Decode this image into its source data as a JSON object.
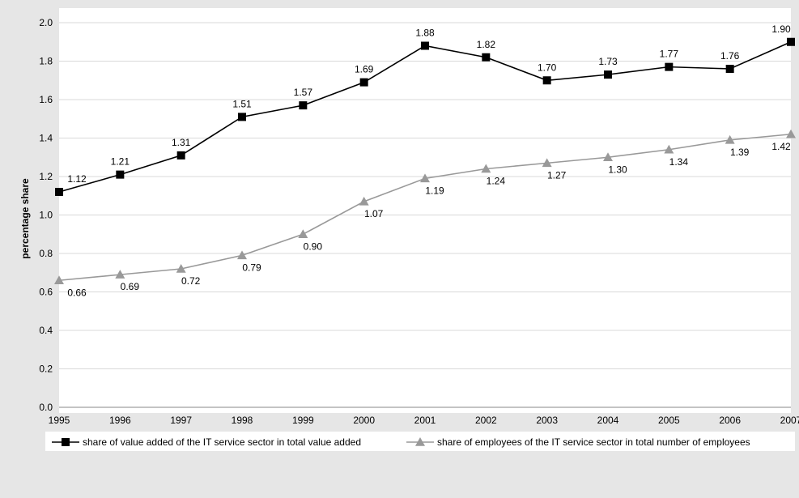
{
  "chart_data": {
    "type": "line",
    "title": "",
    "xlabel": "",
    "ylabel": "percentage share",
    "ylim": [
      0,
      2.0
    ],
    "y_ticks": [
      0.0,
      0.2,
      0.4,
      0.6,
      0.8,
      1.0,
      1.2,
      1.4,
      1.6,
      1.8,
      2.0
    ],
    "y_tick_labels": [
      "0.0",
      "0.2",
      "0.4",
      "0.6",
      "0.8",
      "1.0",
      "1.2",
      "1.4",
      "1.6",
      "1.8",
      "2.0"
    ],
    "grid": "horizontal",
    "legend_position": "bottom",
    "x": [
      "1995",
      "1996",
      "1997",
      "1998",
      "1999",
      "2000",
      "2001",
      "2002",
      "2003",
      "2004",
      "2005",
      "2006",
      "2007"
    ],
    "series": [
      {
        "name": "share of value added of the IT service sector in total value added",
        "values": [
          1.12,
          1.21,
          1.31,
          1.51,
          1.57,
          1.69,
          1.88,
          1.82,
          1.7,
          1.73,
          1.77,
          1.76,
          1.9
        ],
        "labels": [
          "1.12",
          "1.21",
          "1.31",
          "1.51",
          "1.57",
          "1.69",
          "1.88",
          "1.82",
          "1.70",
          "1.73",
          "1.77",
          "1.76",
          "1.90"
        ],
        "color": "#000000",
        "marker": "square",
        "label_position": "above"
      },
      {
        "name": "share of employees of the IT service sector in total number of employees",
        "values": [
          0.66,
          0.69,
          0.72,
          0.79,
          0.9,
          1.07,
          1.19,
          1.24,
          1.27,
          1.3,
          1.34,
          1.39,
          1.42
        ],
        "labels": [
          "0.66",
          "0.69",
          "0.72",
          "0.79",
          "0.90",
          "1.07",
          "1.19",
          "1.24",
          "1.27",
          "1.30",
          "1.34",
          "1.39",
          "1.42"
        ],
        "color": "#999999",
        "marker": "triangle",
        "label_position": "below"
      }
    ]
  }
}
